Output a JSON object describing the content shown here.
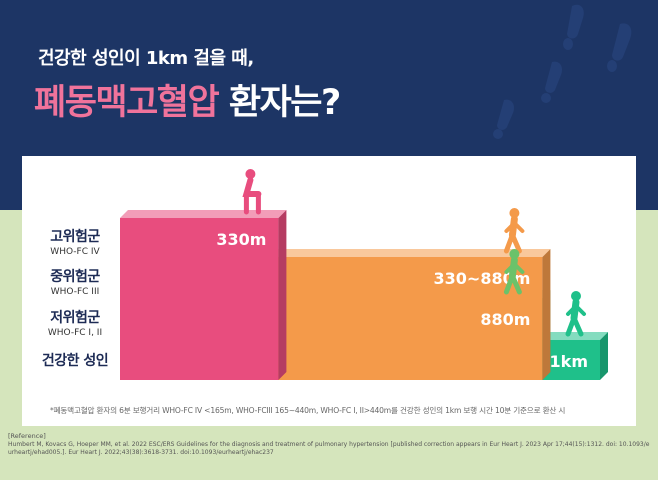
{
  "headline": {
    "line1": "건강한 성인이 1km 걸을 때,",
    "line2_highlight": "폐동맥고혈압",
    "line2_rest": " 환자는?"
  },
  "colors": {
    "navy": "#1d3565",
    "high_risk": "#e84d7e",
    "intermediate_risk": "#f49a4a",
    "low_risk": "#6bc26a",
    "healthy": "#1fc08a"
  },
  "chart_data": {
    "type": "bar",
    "orientation": "horizontal",
    "unit": "m",
    "categories": [
      {
        "label": "고위험군",
        "sublabel": "WHO-FC IV",
        "value_label": "330m",
        "min": 0,
        "max": 330,
        "color": "#e84d7e",
        "icon": "exhausted-person-icon"
      },
      {
        "label": "중위험군",
        "sublabel": "WHO-FC III",
        "value_label": "330~880m",
        "min": 330,
        "max": 880,
        "color": "#f49a4a",
        "icon": "slow-walking-person-icon"
      },
      {
        "label": "저위험군",
        "sublabel": "WHO-FC I, II",
        "value_label": "880m",
        "min": 0,
        "max": 880,
        "color": "#6bc26a",
        "icon": "walking-person-icon"
      },
      {
        "label": "건강한 성인",
        "sublabel": "",
        "value_label": "1km",
        "min": 0,
        "max": 1000,
        "color": "#1fc08a",
        "icon": "running-person-icon"
      }
    ],
    "xlim": [
      0,
      1000
    ]
  },
  "footnote": "*폐동맥고혈압 환자의 6분 보행거리 WHO-FC IV <165m, WHO-FCIII 165~440m,  WHO-FC I, II>440m를 건강한 성인의 1km 보행 시간 10분 기준으로 환산 시",
  "reference": {
    "heading": "[Reference]",
    "text": "Humbert M, Kovacs G, Hoeper MM, et al. 2022 ESC/ERS Guidelines for the diagnosis and treatment of pulmonary hypertension [published correction appears in Eur Heart J. 2023 Apr 17;44(15):1312. doi: 10.1093/eurheartj/ehad005.]. Eur Heart J. 2022;43(38):3618-3731. doi:10.1093/eurheartj/ehac237"
  }
}
